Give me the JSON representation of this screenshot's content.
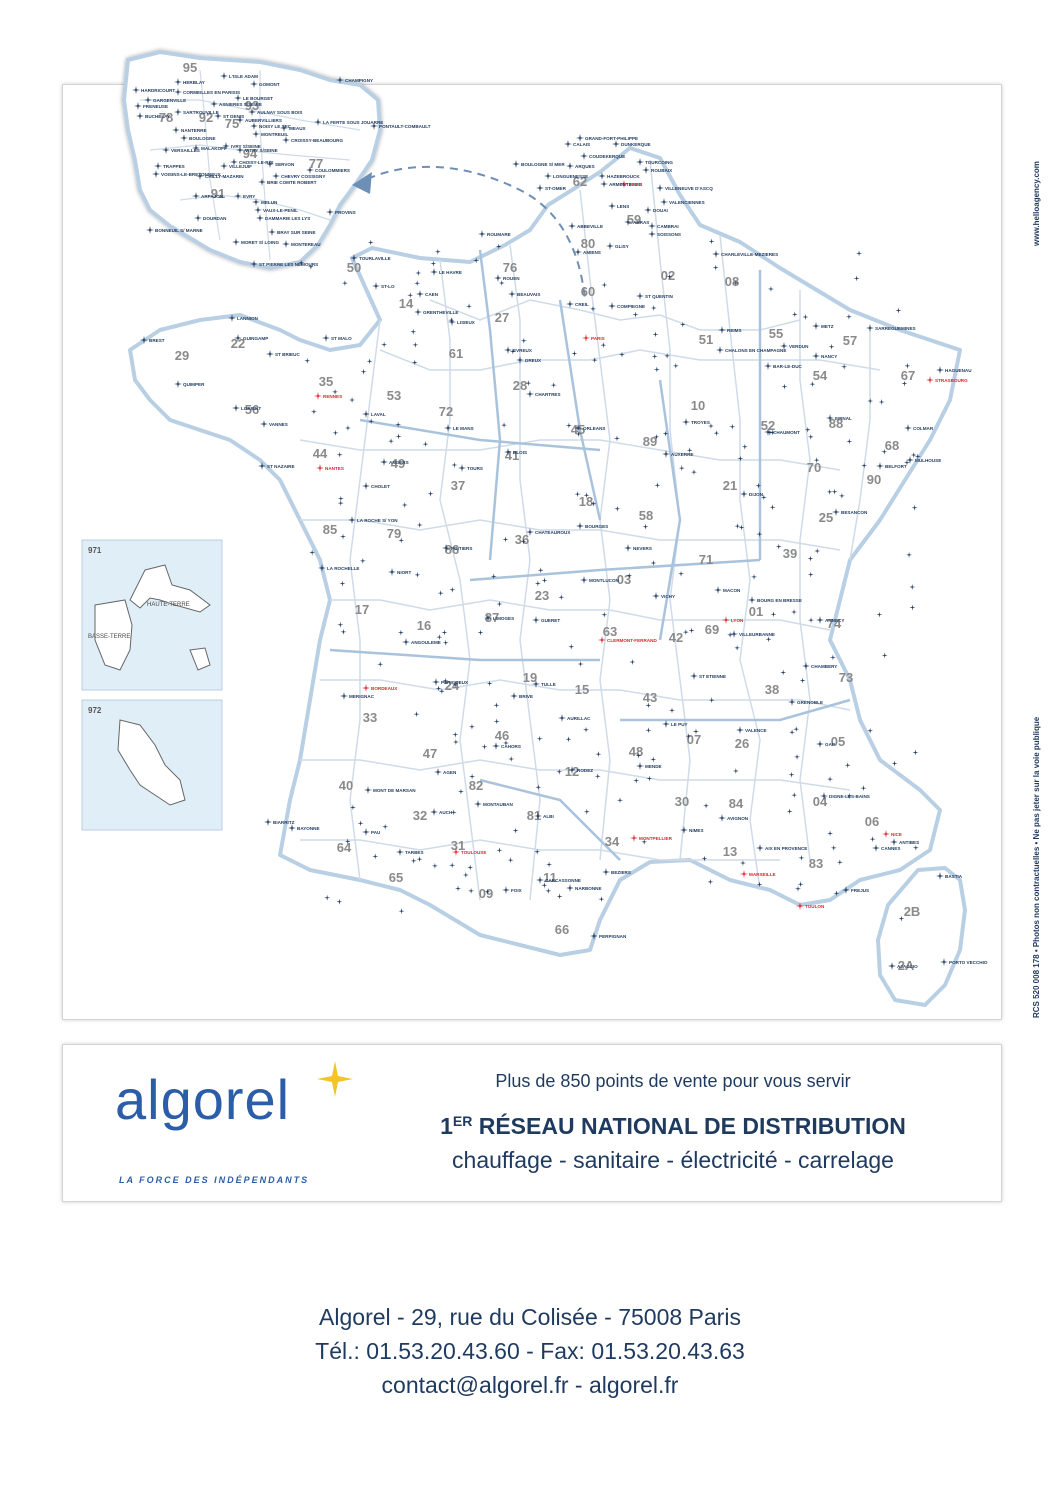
{
  "side_text": {
    "agency": "www.helloagency.com",
    "legal": "RCS 520 008 178  •  Photos non contractuelles  •  Ne pas jeter sur la voie publique"
  },
  "map": {
    "colors": {
      "border": "#b9cfe3",
      "dept_line": "#cfdbe8",
      "star": "#1f3a5f",
      "highlight": "#d7262e",
      "dept_num": "#8a8a8a"
    },
    "insets": {
      "guadeloupe": {
        "code": "971",
        "label_1": "HAUTE-TERRE",
        "label_2": "BASSE-TERRE"
      },
      "martinique": {
        "code": "972"
      }
    },
    "departments": [
      "95",
      "78",
      "92",
      "93",
      "75",
      "94",
      "77",
      "91",
      "62",
      "59",
      "80",
      "02",
      "76",
      "60",
      "50",
      "14",
      "27",
      "61",
      "28",
      "08",
      "51",
      "55",
      "57",
      "67",
      "54",
      "88",
      "68",
      "10",
      "52",
      "35",
      "22",
      "29",
      "56",
      "53",
      "72",
      "44",
      "49",
      "37",
      "45",
      "89",
      "41",
      "21",
      "70",
      "90",
      "25",
      "39",
      "58",
      "18",
      "36",
      "86",
      "79",
      "85",
      "17",
      "16",
      "87",
      "23",
      "03",
      "71",
      "01",
      "69",
      "63",
      "42",
      "74",
      "73",
      "38",
      "24",
      "19",
      "15",
      "43",
      "07",
      "26",
      "05",
      "33",
      "47",
      "46",
      "12",
      "48",
      "40",
      "32",
      "82",
      "81",
      "30",
      "84",
      "04",
      "06",
      "64",
      "65",
      "31",
      "11",
      "34",
      "13",
      "83",
      "09",
      "66",
      "2B",
      "2A"
    ],
    "cities": [
      "HARDRICOURT",
      "CORMEILLES EN PARISIS",
      "GARGENVILLE",
      "FRENEUSE",
      "BUCHELAY",
      "SARTROUVILLE",
      "NANTERRE",
      "BOULOGNE",
      "VERSAILLES",
      "MALAKOFF",
      "CHILLY-MAZARIN",
      "TRAPPES",
      "VOISINS-LE-BRETONNEUX",
      "ARPAJON",
      "DOURDAN",
      "L'ISLE ADAM",
      "GOMONT",
      "HERBLAY",
      "ASNIERES S/SEINE",
      "LE BOURGET",
      "AULNAY SOUS BOIS",
      "ST DENIS",
      "AUBERVILLIERS",
      "NOISY LE SEC",
      "MONTREUIL",
      "MEAUX",
      "VITRY S/SEINE",
      "CROISSY-BEAUBOURG",
      "IVRY S/SEINE",
      "CHOISY-LE-ROI",
      "VILLEJUIF",
      "EVRY",
      "MELUN",
      "VAUX-LE-PENIL",
      "DAMMARIE LES LYS",
      "BRIE COMTE ROBERT",
      "CHEVRY COSSIGNY",
      "SERVON",
      "COULOMMIERS",
      "LA FERTE SOUS JOUARRE",
      "PONTAULT-COMBAULT",
      "PROVINS",
      "MORET S/ LOING",
      "MONTEREAU",
      "BRAY SUR SEINE",
      "ST PIERRE LES NEMOURS",
      "BONNEUIL S/ MARNE",
      "CHAMPIGNY",
      "CALAIS",
      "GRAND-FORT-PHILIPPE",
      "DUNKERQUE",
      "COUDEKERQUE",
      "ARQUES",
      "BOULOGNE S/ MER",
      "LONGUENESSE",
      "HAZEBROUCK",
      "TOURCOING",
      "ROUBAIX",
      "VILLENEUVE D'ASCQ",
      "VALENCIENNES",
      "ARMENTIERES",
      "LILLE",
      "LENS",
      "DOUAI",
      "ARRAS",
      "CAMBRAI",
      "ST-OMER",
      "ABBEVILLE",
      "AMIENS",
      "GLISY",
      "ST QUENTIN",
      "SOISSONS",
      "ROUMARE",
      "LE HAVRE",
      "ROUEN",
      "BEAUVAIS",
      "CREIL",
      "COMPIEGNE",
      "PARIS",
      "DREUX",
      "CHARTRES",
      "TOURLAVILLE",
      "ST-LO",
      "CAEN",
      "GRENTHEVILLE",
      "LISIEUX",
      "EVREUX",
      "CHARLEVILLE-MEZIERES",
      "REIMS",
      "CHALONS EN CHAMPAGNE",
      "VERDUN",
      "BAR-LE-DUC",
      "METZ",
      "NANCY",
      "SARREGUEMINES",
      "HAGUENAU",
      "STRASBOURG",
      "COLMAR",
      "MULHOUSE",
      "EPINAL",
      "TROYES",
      "CHAUMONT",
      "LANNION",
      "GUINGAMP",
      "ST BRIEUC",
      "ST MALO",
      "BREST",
      "QUIMPER",
      "LORIENT",
      "VANNES",
      "RENNES",
      "LAVAL",
      "LE MANS",
      "ANGERS",
      "NANTES",
      "ST NAZAIRE",
      "CHOLET",
      "TOURS",
      "BLOIS",
      "ORLEANS",
      "AUXERRE",
      "DIJON",
      "BESANCON",
      "BELFORT",
      "NEVERS",
      "BOURGES",
      "CHATEAUROUX",
      "POITIERS",
      "NIORT",
      "LA ROCHELLE",
      "LA ROCHE S/ YON",
      "ANGOULEME",
      "LIMOGES",
      "GUERET",
      "MONTLUCON",
      "VICHY",
      "CLERMONT-FERRAND",
      "MACON",
      "BOURG EN BRESSE",
      "LYON",
      "VILLEURBANNE",
      "ST ETIENNE",
      "ANNECY",
      "CHAMBERY",
      "GRENOBLE",
      "PERIGUEUX",
      "BRIVE",
      "TULLE",
      "AURILLAC",
      "LE PUY",
      "VALENCE",
      "GAP",
      "BORDEAUX",
      "MERIGNAC",
      "AGEN",
      "CAHORS",
      "RODEZ",
      "MENDE",
      "MONT DE MARSAN",
      "AUCH",
      "MONTAUBAN",
      "ALBI",
      "NIMES",
      "AVIGNON",
      "DIGNE-LES-BAINS",
      "NICE",
      "CANNES",
      "ANTIBES",
      "PAU",
      "TARBES",
      "TOULOUSE",
      "CARCASSONNE",
      "NARBONNE",
      "BEZIERS",
      "MONTPELLIER",
      "MARSEILLE",
      "AIX EN PROVENCE",
      "TOULON",
      "FREJUS",
      "FOIX",
      "PERPIGNAN",
      "BASTIA",
      "AJACCIO",
      "PORTO VECCHIO",
      "BAYONNE",
      "BIARRITZ"
    ]
  },
  "banner": {
    "logo": "algorel",
    "tagline": "LA FORCE DES INDÉPENDANTS",
    "points": "Plus de 850 points de vente pour vous servir",
    "title_prefix": "1",
    "title_sup": "ER",
    "title_rest": " RÉSEAU NATIONAL DE DISTRIBUTION",
    "trades": "chauffage - sanitaire - électricité - carrelage"
  },
  "footer": {
    "address": "Algorel - 29, rue du Colisée - 75008 Paris",
    "phone": "Tél.: 01.53.20.43.60 - Fax: 01.53.20.43.63",
    "web": "contact@algorel.fr - algorel.fr"
  }
}
